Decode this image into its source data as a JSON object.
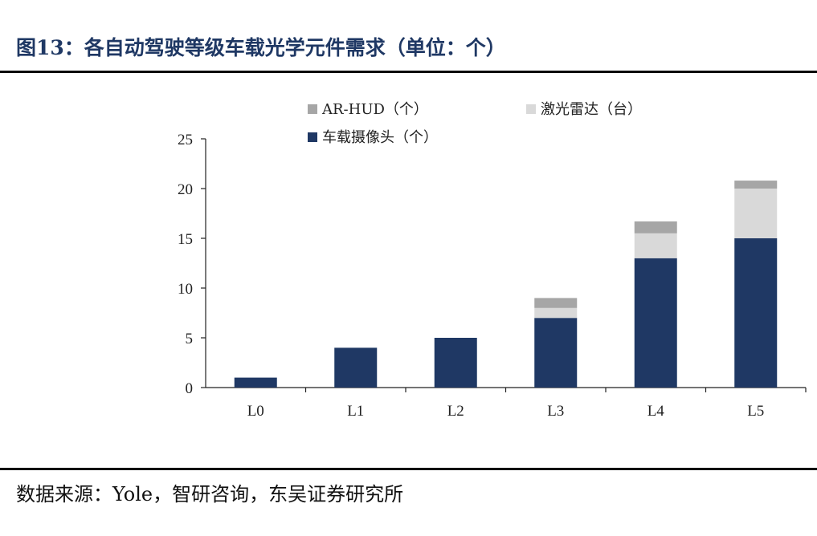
{
  "figure": {
    "title": "图13：各自动驾驶等级车载光学元件需求（单位：个）",
    "source": "数据来源：Yole，智研咨询，东吴证券研究所"
  },
  "chart_data": {
    "type": "bar",
    "stacked": true,
    "categories": [
      "L0",
      "L1",
      "L2",
      "L3",
      "L4",
      "L5"
    ],
    "series": [
      {
        "name": "车载摄像头（个）",
        "color": "#1f3864",
        "values": [
          1,
          4,
          5,
          7,
          13,
          15
        ]
      },
      {
        "name": "激光雷达（台）",
        "color": "#d9d9d9",
        "values": [
          0,
          0,
          0,
          1,
          2.5,
          5
        ]
      },
      {
        "name": "AR-HUD（个）",
        "color": "#a6a6a6",
        "values": [
          0,
          0,
          0,
          1,
          1.2,
          0.8
        ]
      }
    ],
    "legend_order": [
      "AR-HUD（个）",
      "激光雷达（台）",
      "车载摄像头（个）"
    ],
    "legend_position": "top",
    "ylim": [
      0,
      25
    ],
    "yticks": [
      0,
      5,
      10,
      15,
      20,
      25
    ],
    "grid": false,
    "xlabel": "",
    "ylabel": ""
  }
}
